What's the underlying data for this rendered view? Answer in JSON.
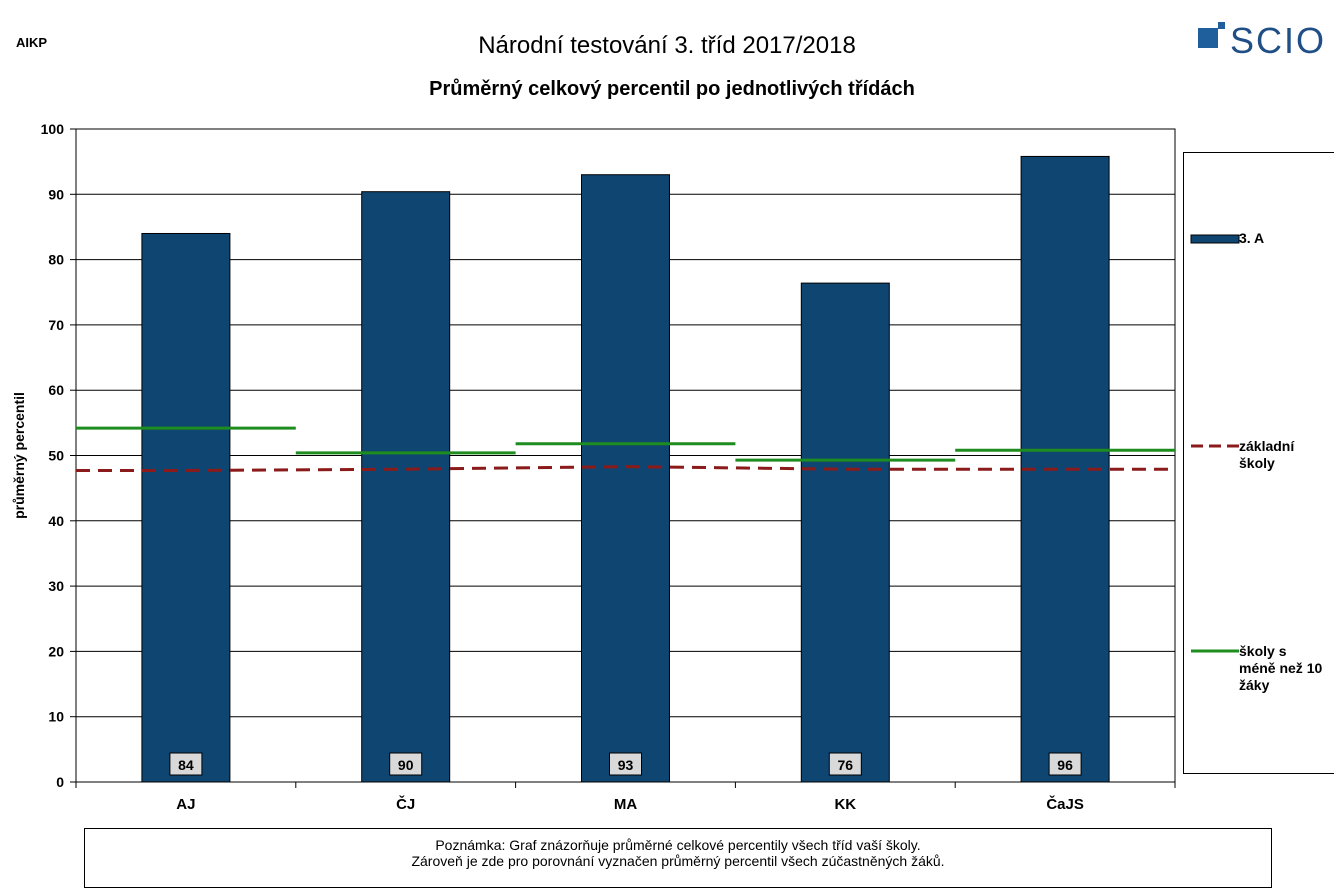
{
  "header": {
    "code": "AIKP",
    "logo_text": "SCIO"
  },
  "chart_data": {
    "type": "bar",
    "title": "Národní testování 3. tříd 2017/2018",
    "subtitle": "Průměrný celkový percentil po jednotlivých třídách",
    "ylabel": "průměrný percentil",
    "xlabel": "",
    "ylim": [
      0,
      100
    ],
    "yticks": [
      0,
      10,
      20,
      30,
      40,
      50,
      60,
      70,
      80,
      90,
      100
    ],
    "grid": true,
    "legend_position": "right",
    "categories": [
      "AJ",
      "ČJ",
      "MA",
      "KK",
      "ČaJS"
    ],
    "series": [
      {
        "name": "3. A",
        "kind": "bar",
        "color": "#0f4571",
        "values": [
          84,
          90.4,
          93,
          76.4,
          95.8
        ],
        "data_labels": [
          "84",
          "90",
          "93",
          "76",
          "96"
        ]
      },
      {
        "name": "základní školy",
        "kind": "dashed-line",
        "color": "#8b1a1a",
        "values": [
          47.7,
          47.9,
          48.3,
          47.9,
          47.9
        ]
      },
      {
        "name": "školy s méně než 10 žáky",
        "kind": "step-line",
        "color": "#1e8c1e",
        "values": [
          54.2,
          50.4,
          51.8,
          49.3,
          50.8
        ]
      }
    ],
    "legend": [
      {
        "lines": [
          "3. A"
        ]
      },
      {
        "lines": [
          "základní",
          "školy"
        ]
      },
      {
        "lines": [
          "školy s",
          "méně než 10",
          "žáky"
        ]
      }
    ]
  },
  "note": {
    "line1": "Poznámka: Graf znázorňuje průměrné celkové percentily všech tříd vaší školy.",
    "line2": "Zároveň je zde pro porovnání vyznačen průměrný percentil všech zúčastněných žáků."
  }
}
